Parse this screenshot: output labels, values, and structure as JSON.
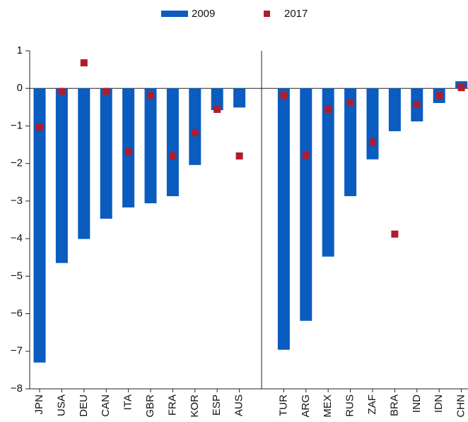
{
  "chart_data": {
    "type": "bar",
    "categories": [
      "JPN",
      "USA",
      "DEU",
      "CAN",
      "ITA",
      "GBR",
      "FRA",
      "KOR",
      "ESP",
      "AUS",
      null,
      "TUR",
      "ARG",
      "MEX",
      "RUS",
      "ZAF",
      "BRA",
      "IND",
      "IDN",
      "CHN"
    ],
    "series": [
      {
        "name": "2009",
        "color": "#0a5cbf",
        "type": "bar",
        "values": [
          -7.3,
          -4.65,
          -4.01,
          -3.47,
          -3.17,
          -3.06,
          -2.87,
          -2.04,
          -0.58,
          -0.51,
          null,
          -6.96,
          -6.19,
          -4.48,
          -2.87,
          -1.89,
          -1.14,
          -0.88,
          -0.39,
          0.19
        ]
      },
      {
        "name": "2017",
        "color": "#b01c2e",
        "type": "scatter",
        "values": [
          -1.03,
          -0.08,
          0.68,
          -0.08,
          -1.69,
          -0.19,
          -1.8,
          -1.18,
          -0.56,
          -1.8,
          null,
          -0.19,
          -1.78,
          -0.56,
          -0.38,
          -1.43,
          -3.88,
          -0.43,
          -0.19,
          0.02
        ]
      }
    ],
    "ylim": [
      -8,
      1
    ],
    "yticks": [
      {
        "value": -8,
        "label": "−8"
      },
      {
        "value": -7,
        "label": "−7"
      },
      {
        "value": -6,
        "label": "−6"
      },
      {
        "value": -5,
        "label": "−5"
      },
      {
        "value": -4,
        "label": "−4"
      },
      {
        "value": -3,
        "label": "−3"
      },
      {
        "value": -2,
        "label": "−2"
      },
      {
        "value": -1,
        "label": "−1"
      },
      0,
      1
    ],
    "legend": "top"
  }
}
